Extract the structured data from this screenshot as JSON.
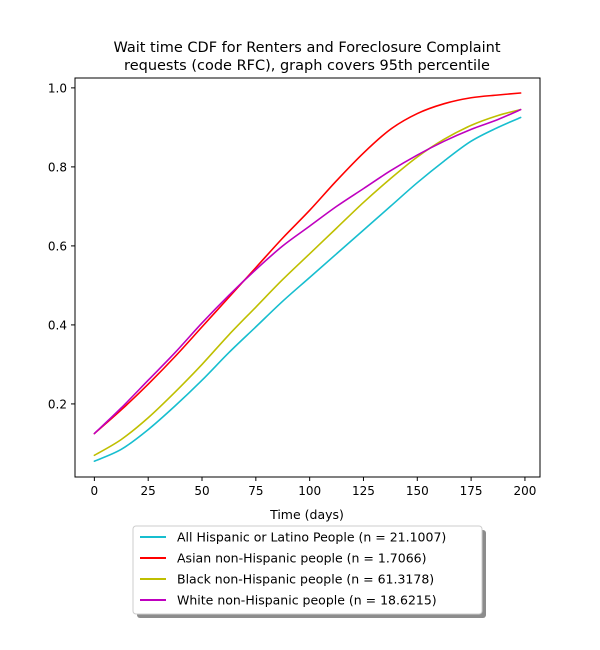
{
  "chart_data": {
    "type": "line",
    "title_lines": [
      "Wait time CDF for Renters and Foreclosure Complaint",
      "requests (code RFC), graph covers 95th percentile"
    ],
    "xlabel": "Time (days)",
    "ylabel": "",
    "xlim": [
      -9,
      207
    ],
    "ylim": [
      0.015,
      1.025
    ],
    "xticks": [
      0,
      25,
      50,
      75,
      100,
      125,
      150,
      175,
      200
    ],
    "yticks": [
      0.2,
      0.4,
      0.6,
      0.8,
      1.0
    ],
    "ytick_labels": [
      "0.2",
      "0.4",
      "0.6",
      "0.8",
      "1.0"
    ],
    "grid": false,
    "legend_position": "below",
    "series": [
      {
        "name": "All Hispanic or Latino People (n = 21.1007)",
        "color": "#17becf",
        "x": [
          0,
          12.5,
          25,
          37.5,
          50,
          62.5,
          75,
          87.5,
          100,
          112.5,
          125,
          137.5,
          150,
          162.5,
          175,
          187.5,
          198
        ],
        "y": [
          0.055,
          0.085,
          0.135,
          0.195,
          0.26,
          0.33,
          0.395,
          0.46,
          0.52,
          0.58,
          0.64,
          0.7,
          0.76,
          0.815,
          0.865,
          0.9,
          0.925
        ]
      },
      {
        "name": "Asian non-Hispanic people (n = 1.7066)",
        "color": "#ff0000",
        "x": [
          0,
          12.5,
          25,
          37.5,
          50,
          62.5,
          75,
          87.5,
          100,
          112.5,
          125,
          137.5,
          150,
          162.5,
          175,
          187.5,
          198
        ],
        "y": [
          0.125,
          0.185,
          0.25,
          0.32,
          0.395,
          0.47,
          0.545,
          0.62,
          0.69,
          0.765,
          0.835,
          0.895,
          0.935,
          0.96,
          0.975,
          0.982,
          0.987
        ]
      },
      {
        "name": "Black non-Hispanic people (n = 61.3178)",
        "color": "#bfbf00",
        "x": [
          0,
          12.5,
          25,
          37.5,
          50,
          62.5,
          75,
          87.5,
          100,
          112.5,
          125,
          137.5,
          150,
          162.5,
          175,
          187.5,
          198
        ],
        "y": [
          0.07,
          0.11,
          0.165,
          0.23,
          0.3,
          0.375,
          0.445,
          0.515,
          0.58,
          0.645,
          0.71,
          0.77,
          0.825,
          0.87,
          0.905,
          0.93,
          0.945
        ]
      },
      {
        "name": "White non-Hispanic people (n = 18.6215)",
        "color": "#bf00bf",
        "x": [
          0,
          12.5,
          25,
          37.5,
          50,
          62.5,
          75,
          87.5,
          100,
          112.5,
          125,
          137.5,
          150,
          162.5,
          175,
          187.5,
          198
        ],
        "y": [
          0.125,
          0.19,
          0.26,
          0.33,
          0.405,
          0.475,
          0.54,
          0.6,
          0.65,
          0.7,
          0.745,
          0.79,
          0.83,
          0.865,
          0.895,
          0.92,
          0.945
        ]
      }
    ]
  }
}
